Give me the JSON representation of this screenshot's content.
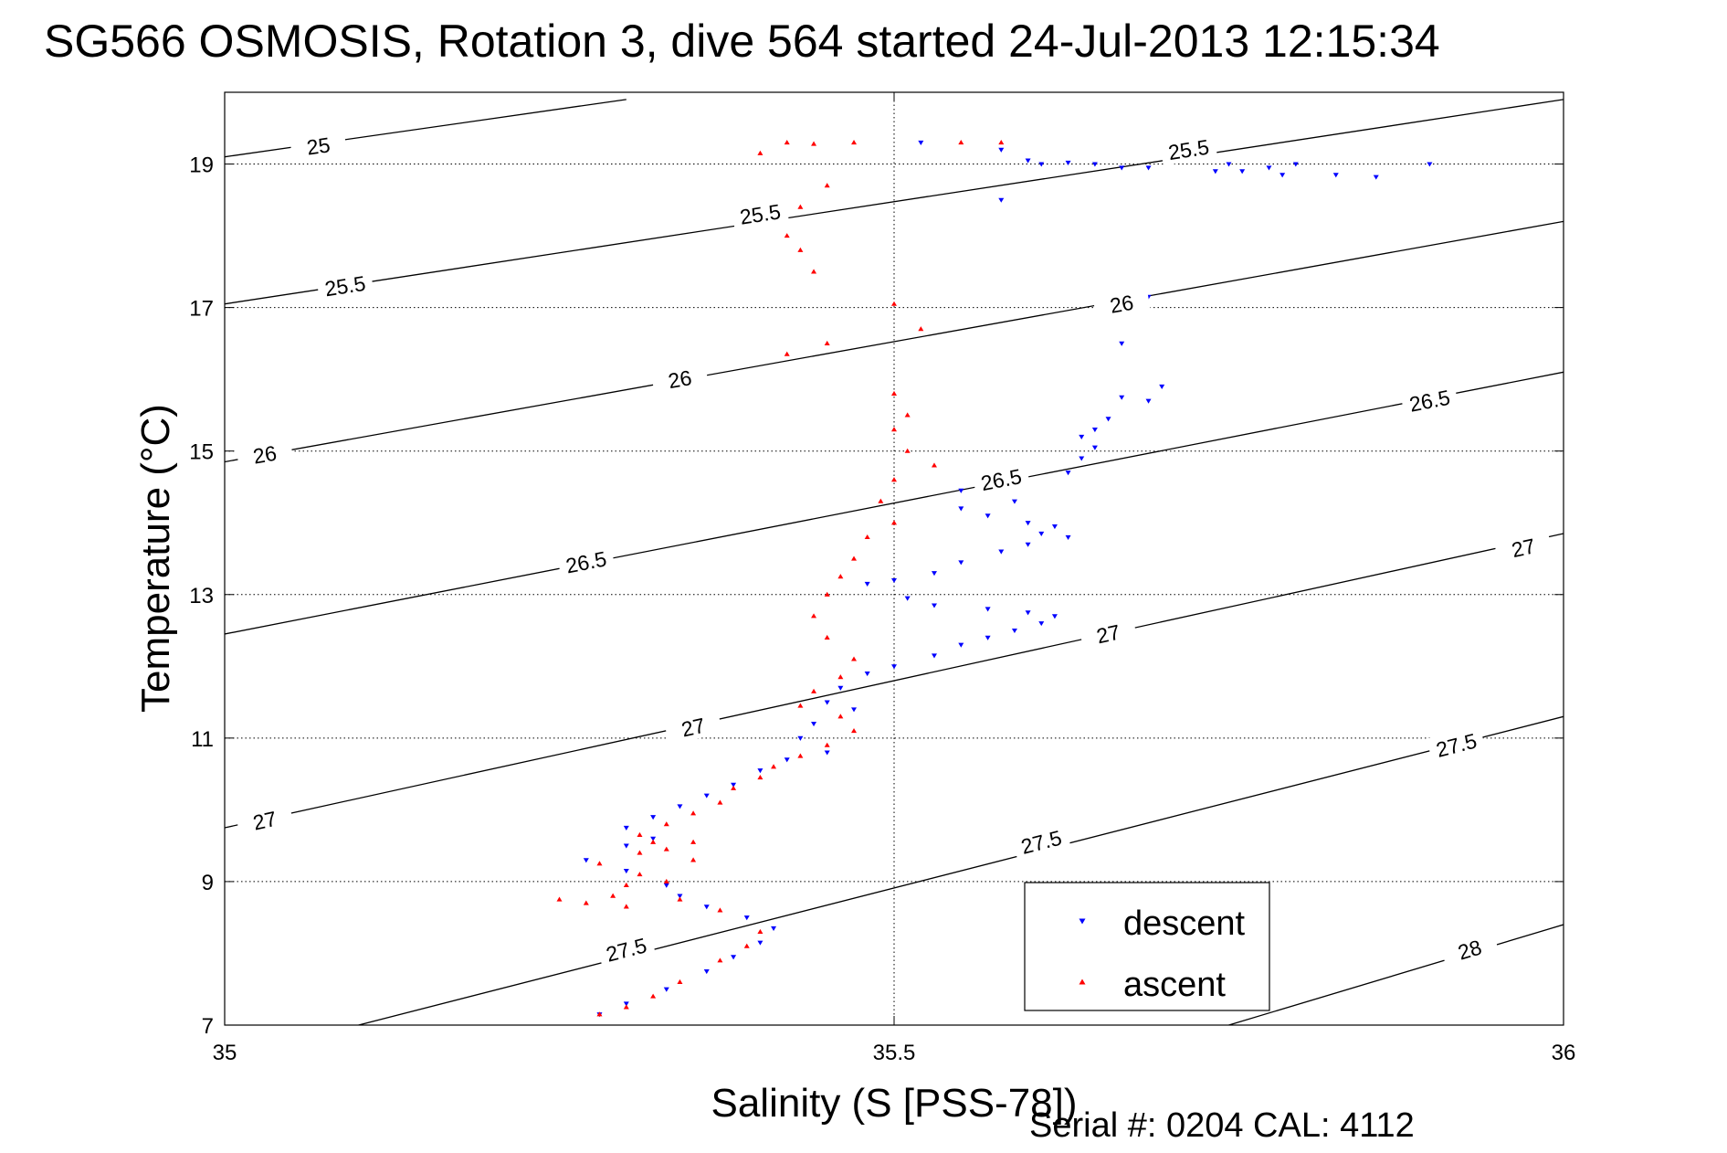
{
  "chart_data": {
    "type": "scatter",
    "title": "SG566 OSMOSIS, Rotation 3, dive 564 started 24-Jul-2013 12:15:34",
    "xlabel": "Salinity (S [PSS-78])",
    "ylabel": "Temperature (°C)",
    "xlim": [
      35,
      36
    ],
    "ylim": [
      7,
      20
    ],
    "x_ticks": [
      35,
      35.5,
      36
    ],
    "x_tick_labels": [
      "35",
      "35.5",
      "36"
    ],
    "y_ticks": [
      7,
      9,
      11,
      13,
      15,
      17,
      19
    ],
    "y_tick_labels": [
      "7",
      "9",
      "11",
      "13",
      "15",
      "17",
      "19"
    ],
    "grid": true,
    "legend_position": "bottom-right",
    "footer": "Serial #: 0204  CAL: 4112",
    "contours": [
      {
        "label": "25",
        "points": [
          [
            35.0,
            19.1
          ],
          [
            35.3,
            19.9
          ]
        ],
        "label_at": [
          [
            35.07,
            19.25
          ]
        ]
      },
      {
        "label": "25.5",
        "points": [
          [
            35.0,
            17.05
          ],
          [
            36.0,
            19.9
          ]
        ],
        "label_at": [
          [
            35.09,
            17.3
          ],
          [
            35.4,
            18.3
          ],
          [
            35.72,
            19.2
          ]
        ]
      },
      {
        "label": "26",
        "points": [
          [
            35.0,
            14.85
          ],
          [
            36.0,
            18.2
          ]
        ],
        "label_at": [
          [
            35.03,
            14.95
          ],
          [
            35.34,
            16.0
          ],
          [
            35.67,
            17.05
          ]
        ]
      },
      {
        "label": "26.5",
        "points": [
          [
            35.0,
            12.45
          ],
          [
            36.0,
            16.1
          ]
        ],
        "label_at": [
          [
            35.27,
            13.45
          ],
          [
            35.58,
            14.6
          ],
          [
            35.9,
            15.7
          ]
        ]
      },
      {
        "label": "27",
        "points": [
          [
            35.0,
            9.75
          ],
          [
            36.0,
            13.85
          ]
        ],
        "label_at": [
          [
            35.03,
            9.85
          ],
          [
            35.35,
            11.15
          ],
          [
            35.66,
            12.45
          ],
          [
            35.97,
            13.65
          ]
        ]
      },
      {
        "label": "27.5",
        "points": [
          [
            35.1,
            7.0
          ],
          [
            36.0,
            11.3
          ]
        ],
        "label_at": [
          [
            35.3,
            8.05
          ],
          [
            35.61,
            9.55
          ],
          [
            35.92,
            10.9
          ]
        ]
      },
      {
        "label": "28",
        "points": [
          [
            35.75,
            7.0
          ],
          [
            36.0,
            8.4
          ]
        ],
        "label_at": [
          [
            35.93,
            8.05
          ]
        ]
      }
    ],
    "series": [
      {
        "name": "descent",
        "color": "#0000ff",
        "marker": "triangle-down",
        "points": [
          [
            35.52,
            19.3
          ],
          [
            35.58,
            19.2
          ],
          [
            35.6,
            19.05
          ],
          [
            35.61,
            19.0
          ],
          [
            35.63,
            19.02
          ],
          [
            35.65,
            19.0
          ],
          [
            35.67,
            18.95
          ],
          [
            35.69,
            18.95
          ],
          [
            35.75,
            19.0
          ],
          [
            35.78,
            18.95
          ],
          [
            35.8,
            19.0
          ],
          [
            35.74,
            18.9
          ],
          [
            35.76,
            18.9
          ],
          [
            35.79,
            18.85
          ],
          [
            35.83,
            18.85
          ],
          [
            35.86,
            18.82
          ],
          [
            35.9,
            19.0
          ],
          [
            35.58,
            18.5
          ],
          [
            35.69,
            17.15
          ],
          [
            35.67,
            16.5
          ],
          [
            35.7,
            15.9
          ],
          [
            35.67,
            15.75
          ],
          [
            35.69,
            15.7
          ],
          [
            35.66,
            15.45
          ],
          [
            35.65,
            15.3
          ],
          [
            35.64,
            15.2
          ],
          [
            35.65,
            15.05
          ],
          [
            35.64,
            14.9
          ],
          [
            35.63,
            14.7
          ],
          [
            35.58,
            14.55
          ],
          [
            35.55,
            14.45
          ],
          [
            35.59,
            14.3
          ],
          [
            35.55,
            14.2
          ],
          [
            35.57,
            14.1
          ],
          [
            35.6,
            14.0
          ],
          [
            35.62,
            13.95
          ],
          [
            35.61,
            13.85
          ],
          [
            35.63,
            13.8
          ],
          [
            35.6,
            13.7
          ],
          [
            35.58,
            13.6
          ],
          [
            35.55,
            13.45
          ],
          [
            35.53,
            13.3
          ],
          [
            35.5,
            13.2
          ],
          [
            35.48,
            13.15
          ],
          [
            35.51,
            12.95
          ],
          [
            35.53,
            12.85
          ],
          [
            35.57,
            12.8
          ],
          [
            35.6,
            12.75
          ],
          [
            35.62,
            12.7
          ],
          [
            35.61,
            12.6
          ],
          [
            35.59,
            12.5
          ],
          [
            35.57,
            12.4
          ],
          [
            35.55,
            12.3
          ],
          [
            35.53,
            12.15
          ],
          [
            35.5,
            12.0
          ],
          [
            35.48,
            11.9
          ],
          [
            35.46,
            11.7
          ],
          [
            35.45,
            11.5
          ],
          [
            35.47,
            11.4
          ],
          [
            35.44,
            11.2
          ],
          [
            35.43,
            11.0
          ],
          [
            35.45,
            10.8
          ],
          [
            35.42,
            10.7
          ],
          [
            35.4,
            10.55
          ],
          [
            35.38,
            10.35
          ],
          [
            35.36,
            10.2
          ],
          [
            35.34,
            10.05
          ],
          [
            35.32,
            9.9
          ],
          [
            35.3,
            9.75
          ],
          [
            35.32,
            9.6
          ],
          [
            35.3,
            9.5
          ],
          [
            35.27,
            9.3
          ],
          [
            35.3,
            9.15
          ],
          [
            35.33,
            8.95
          ],
          [
            35.34,
            8.8
          ],
          [
            35.36,
            8.65
          ],
          [
            35.39,
            8.5
          ],
          [
            35.41,
            8.35
          ],
          [
            35.4,
            8.15
          ],
          [
            35.38,
            7.95
          ],
          [
            35.36,
            7.75
          ],
          [
            35.33,
            7.5
          ],
          [
            35.3,
            7.3
          ],
          [
            35.28,
            7.15
          ]
        ]
      },
      {
        "name": "ascent",
        "color": "#ff0000",
        "marker": "triangle-up",
        "points": [
          [
            35.42,
            19.3
          ],
          [
            35.44,
            19.28
          ],
          [
            35.47,
            19.3
          ],
          [
            35.55,
            19.3
          ],
          [
            35.58,
            19.3
          ],
          [
            35.4,
            19.15
          ],
          [
            35.45,
            18.7
          ],
          [
            35.43,
            18.4
          ],
          [
            35.42,
            18.0
          ],
          [
            35.43,
            17.8
          ],
          [
            35.44,
            17.5
          ],
          [
            35.5,
            17.05
          ],
          [
            35.52,
            16.7
          ],
          [
            35.45,
            16.5
          ],
          [
            35.42,
            16.35
          ],
          [
            35.5,
            15.8
          ],
          [
            35.51,
            15.5
          ],
          [
            35.5,
            15.3
          ],
          [
            35.51,
            15.0
          ],
          [
            35.53,
            14.8
          ],
          [
            35.5,
            14.6
          ],
          [
            35.49,
            14.3
          ],
          [
            35.5,
            14.0
          ],
          [
            35.48,
            13.8
          ],
          [
            35.47,
            13.5
          ],
          [
            35.46,
            13.25
          ],
          [
            35.45,
            13.0
          ],
          [
            35.44,
            12.7
          ],
          [
            35.45,
            12.4
          ],
          [
            35.47,
            12.1
          ],
          [
            35.46,
            11.85
          ],
          [
            35.44,
            11.65
          ],
          [
            35.43,
            11.45
          ],
          [
            35.46,
            11.3
          ],
          [
            35.47,
            11.1
          ],
          [
            35.45,
            10.9
          ],
          [
            35.43,
            10.75
          ],
          [
            35.41,
            10.6
          ],
          [
            35.4,
            10.45
          ],
          [
            35.38,
            10.3
          ],
          [
            35.37,
            10.1
          ],
          [
            35.35,
            9.95
          ],
          [
            35.33,
            9.8
          ],
          [
            35.31,
            9.65
          ],
          [
            35.32,
            9.55
          ],
          [
            35.31,
            9.4
          ],
          [
            35.28,
            9.25
          ],
          [
            35.31,
            9.1
          ],
          [
            35.3,
            8.95
          ],
          [
            35.29,
            8.8
          ],
          [
            35.3,
            8.65
          ],
          [
            35.34,
            8.75
          ],
          [
            35.37,
            8.6
          ],
          [
            35.4,
            8.3
          ],
          [
            35.39,
            8.1
          ],
          [
            35.37,
            7.9
          ],
          [
            35.34,
            7.6
          ],
          [
            35.32,
            7.4
          ],
          [
            35.3,
            7.25
          ],
          [
            35.28,
            7.15
          ],
          [
            35.27,
            8.7
          ],
          [
            35.25,
            8.75
          ],
          [
            35.33,
            9.0
          ],
          [
            35.35,
            9.3
          ],
          [
            35.33,
            9.45
          ],
          [
            35.35,
            9.55
          ]
        ]
      }
    ]
  }
}
